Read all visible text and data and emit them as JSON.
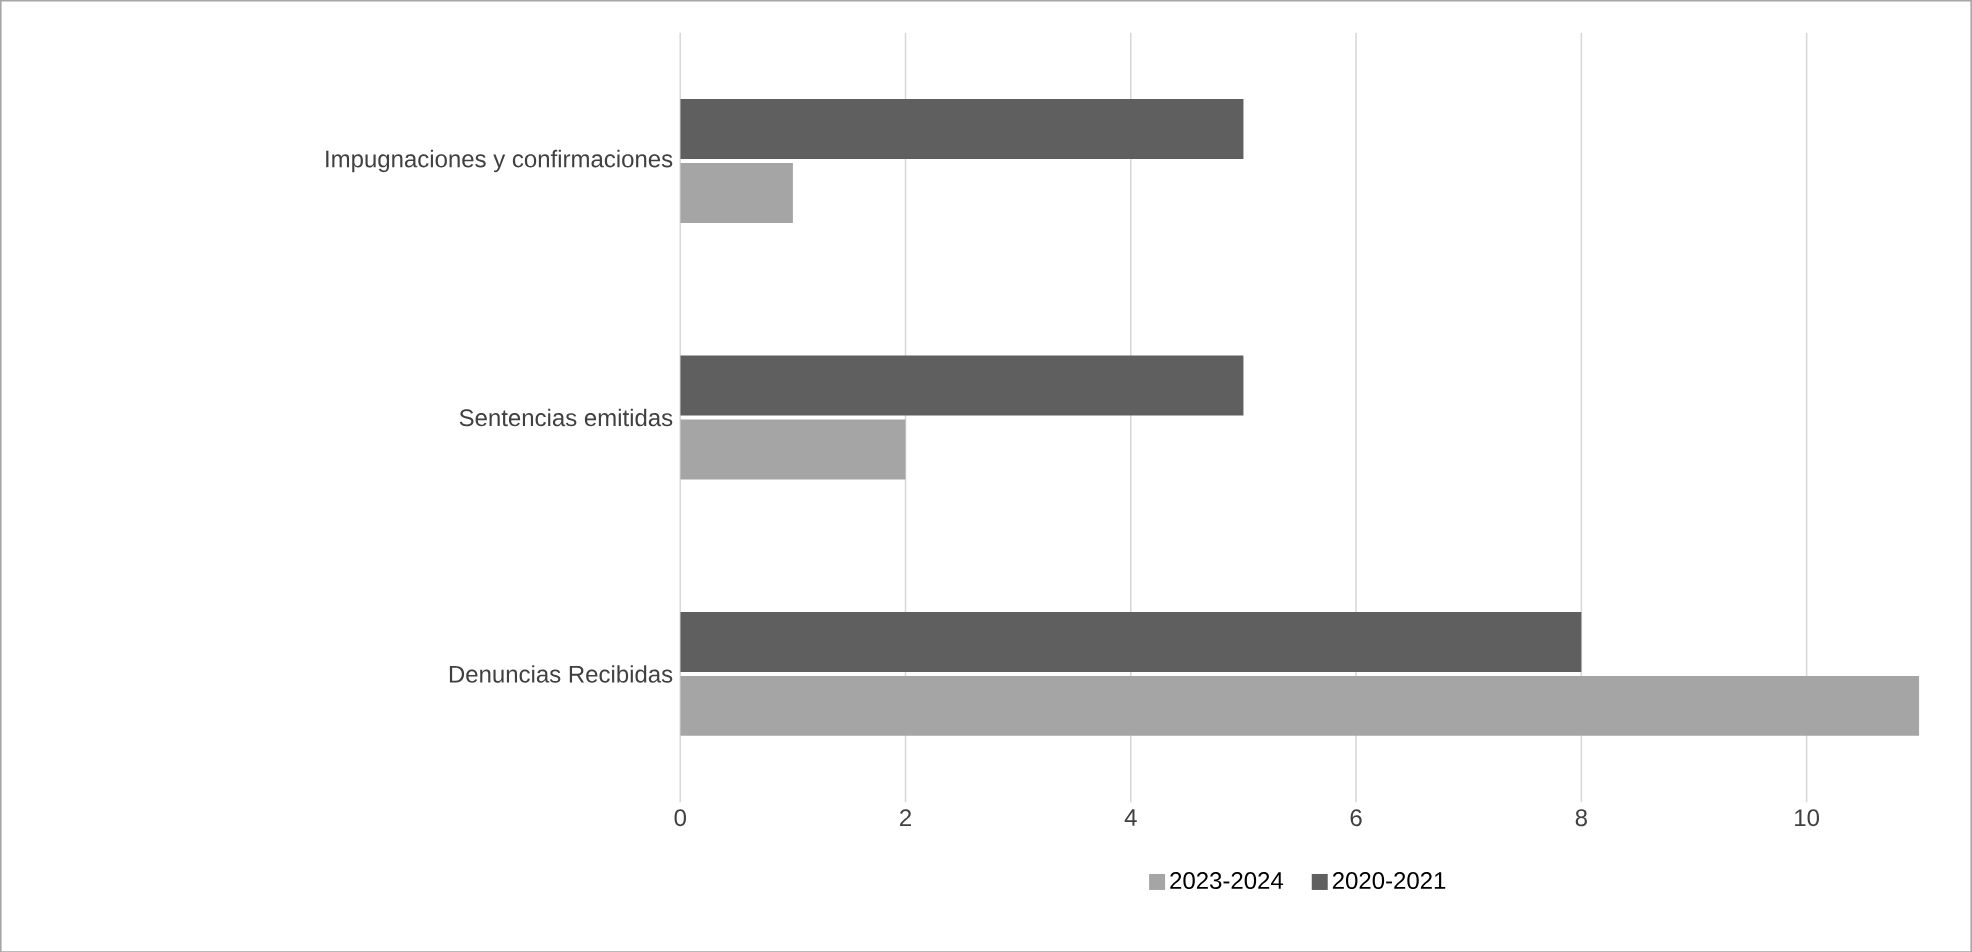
{
  "chart_data": {
    "type": "bar",
    "orientation": "horizontal",
    "categories": [
      "Impugnaciones y confirmaciones",
      "Sentencias emitidas",
      "Denuncias Recibidas"
    ],
    "series": [
      {
        "name": "2023-2024",
        "color": "#a5a5a5",
        "values": [
          1,
          2,
          11
        ]
      },
      {
        "name": "2020-2021",
        "color": "#5f5f5f",
        "values": [
          5,
          5,
          8
        ]
      }
    ],
    "xlim": [
      0,
      11
    ],
    "xticks": [
      0,
      2,
      4,
      6,
      8,
      10
    ],
    "grid": "x",
    "legend": "bottom"
  }
}
